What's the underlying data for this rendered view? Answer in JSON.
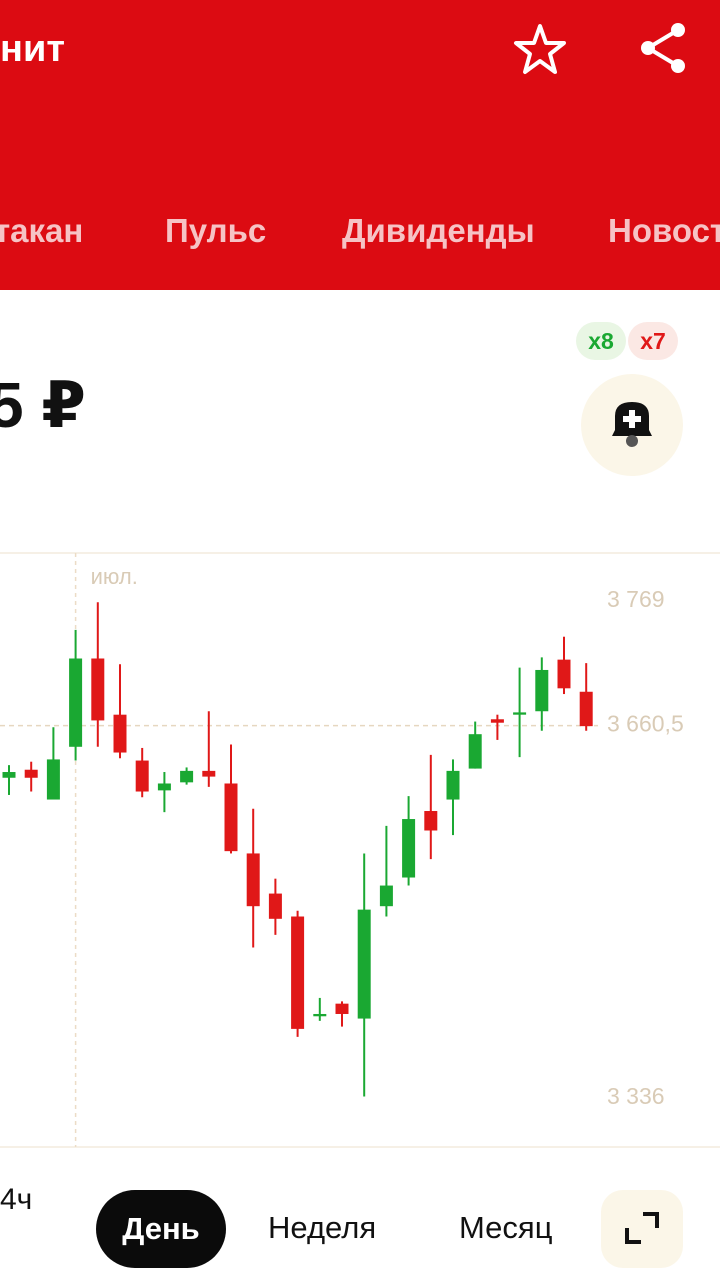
{
  "header": {
    "title": "нит"
  },
  "tabs": [
    "такан",
    "Пульс",
    "Дивиденды",
    "Новост"
  ],
  "price": "5 ₽",
  "badges": {
    "up": "x8",
    "down": "x7"
  },
  "chart_data": {
    "type": "candlestick",
    "categories": [
      null,
      null,
      null,
      "июл.",
      null,
      null,
      null,
      null,
      null,
      null,
      null,
      null,
      null,
      null,
      null,
      null,
      null,
      null,
      null,
      null,
      null,
      null,
      null,
      null,
      null,
      null,
      null
    ],
    "open": [
      3615,
      3622,
      3596,
      3642,
      3719,
      3670,
      3630,
      3604,
      3611,
      3621,
      3610,
      3549,
      3514,
      3494,
      3407,
      3418,
      3405,
      3503,
      3528,
      3586,
      3596,
      3623,
      3666,
      3670,
      3673,
      3718,
      3690
    ],
    "high": [
      3626,
      3629,
      3659,
      3744,
      3768,
      3714,
      3641,
      3620,
      3624,
      3673,
      3644,
      3588,
      3527,
      3499,
      3423,
      3420,
      3549,
      3573,
      3599,
      3635,
      3631,
      3664,
      3670,
      3711,
      3720,
      3738,
      3715
    ],
    "low": [
      3600,
      3603,
      3596,
      3630,
      3642,
      3632,
      3598,
      3585,
      3609,
      3607,
      3549,
      3467,
      3478,
      3389,
      3403,
      3398,
      3337,
      3494,
      3521,
      3544,
      3565,
      3623,
      3648,
      3633,
      3656,
      3688,
      3656
    ],
    "close": [
      3620,
      3615,
      3631,
      3719,
      3665,
      3637,
      3603,
      3610,
      3621,
      3616,
      3551,
      3503,
      3492,
      3396,
      3409,
      3409,
      3500,
      3521,
      3579,
      3569,
      3621,
      3653,
      3663,
      3672,
      3709,
      3693,
      3660
    ],
    "up_color": "#1aa832",
    "down_color": "#e01818",
    "ylim": [
      3293,
      3811
    ],
    "yticks": [
      {
        "value": 3336,
        "label": "3 336"
      },
      {
        "value": 3769,
        "label": "3 769"
      }
    ],
    "last_price": {
      "value": 3660.5,
      "label": "3 660,5"
    }
  },
  "periods": [
    "4ч",
    "День",
    "Неделя",
    "Месяц"
  ],
  "selected_period": "День"
}
